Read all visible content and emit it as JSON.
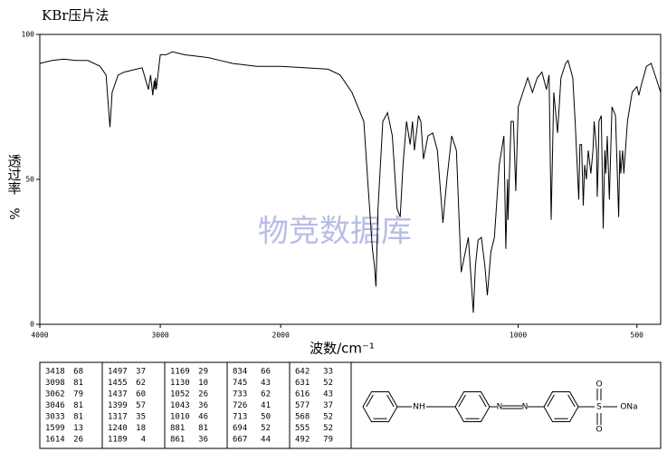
{
  "chart_data": {
    "type": "line",
    "title": "KBr压片法",
    "xlabel": "波数/cm⁻¹",
    "ylabel": "透过率",
    "yunit": "%",
    "watermark": "物竞数据库",
    "xlim": [
      4000,
      400
    ],
    "xscale_break": 2000,
    "ylim": [
      0,
      100
    ],
    "xticks": [
      4000,
      3000,
      2000,
      1000,
      500
    ],
    "yticks": [
      0,
      50,
      100
    ],
    "series": [
      {
        "color": "#000000",
        "x": [
          4000,
          3900,
          3800,
          3700,
          3600,
          3500,
          3450,
          3418,
          3400,
          3350,
          3300,
          3200,
          3150,
          3098,
          3080,
          3062,
          3050,
          3046,
          3040,
          3033,
          3000,
          2950,
          2900,
          2800,
          2700,
          2600,
          2500,
          2400,
          2300,
          2200,
          2100,
          2000,
          1900,
          1800,
          1750,
          1700,
          1650,
          1630,
          1614,
          1605,
          1599,
          1590,
          1570,
          1550,
          1530,
          1510,
          1497,
          1485,
          1470,
          1455,
          1445,
          1437,
          1420,
          1410,
          1399,
          1380,
          1360,
          1340,
          1317,
          1300,
          1280,
          1260,
          1240,
          1230,
          1210,
          1189,
          1180,
          1169,
          1155,
          1140,
          1130,
          1115,
          1100,
          1080,
          1060,
          1052,
          1045,
          1043,
          1030,
          1020,
          1010,
          1000,
          980,
          960,
          940,
          920,
          900,
          881,
          870,
          861,
          850,
          834,
          820,
          800,
          790,
          770,
          760,
          745,
          740,
          733,
          726,
          720,
          713,
          705,
          694,
          685,
          680,
          670,
          667,
          663,
          660,
          650,
          642,
          635,
          631,
          625,
          616,
          605,
          600,
          590,
          577,
          572,
          568,
          560,
          555,
          540,
          520,
          500,
          492,
          480,
          460,
          440,
          420,
          400
        ],
        "values": [
          90,
          91,
          91.5,
          91,
          91,
          89,
          86,
          68,
          80,
          86,
          87,
          88,
          88.5,
          81,
          86,
          79,
          84,
          81,
          85,
          81,
          93,
          93,
          94,
          93,
          92.5,
          92,
          91,
          90,
          89.5,
          89,
          89,
          89,
          88.5,
          88,
          86,
          80,
          70,
          45,
          26,
          20,
          13,
          40,
          70,
          73,
          65,
          40,
          37,
          55,
          70,
          62,
          70,
          60,
          72,
          70,
          57,
          65,
          66,
          60,
          35,
          50,
          65,
          60,
          18,
          22,
          30,
          4,
          20,
          29,
          30,
          20,
          10,
          25,
          30,
          55,
          65,
          26,
          50,
          36,
          70,
          70,
          46,
          75,
          80,
          85,
          80,
          85,
          87,
          81,
          86,
          36,
          80,
          66,
          85,
          90,
          91,
          85,
          70,
          43,
          62,
          62,
          41,
          55,
          50,
          60,
          52,
          60,
          70,
          60,
          44,
          55,
          70,
          72,
          33,
          60,
          52,
          65,
          43,
          75,
          74,
          72,
          37,
          60,
          52,
          60,
          52,
          70,
          80,
          82,
          79,
          83,
          89,
          90,
          85,
          80
        ]
      }
    ]
  },
  "peaks": {
    "columns": [
      [
        [
          3418,
          68
        ],
        [
          3098,
          81
        ],
        [
          3062,
          79
        ],
        [
          3046,
          81
        ],
        [
          3033,
          81
        ],
        [
          1599,
          13
        ],
        [
          1614,
          26
        ]
      ],
      [
        [
          1497,
          37
        ],
        [
          1455,
          62
        ],
        [
          1437,
          60
        ],
        [
          1399,
          57
        ],
        [
          1317,
          35
        ],
        [
          1240,
          18
        ],
        [
          1189,
          4
        ]
      ],
      [
        [
          1169,
          29
        ],
        [
          1130,
          10
        ],
        [
          1052,
          26
        ],
        [
          1043,
          36
        ],
        [
          1010,
          46
        ],
        [
          881,
          81
        ],
        [
          861,
          36
        ]
      ],
      [
        [
          834,
          66
        ],
        [
          745,
          43
        ],
        [
          733,
          62
        ],
        [
          726,
          41
        ],
        [
          713,
          50
        ],
        [
          694,
          52
        ],
        [
          667,
          44
        ]
      ],
      [
        [
          642,
          33
        ],
        [
          631,
          52
        ],
        [
          616,
          43
        ],
        [
          577,
          37
        ],
        [
          568,
          52
        ],
        [
          555,
          52
        ],
        [
          492,
          79
        ]
      ]
    ]
  },
  "structure": {
    "labels": [
      "NH",
      "N",
      "N",
      "S",
      "O",
      "O",
      "ONa"
    ]
  }
}
